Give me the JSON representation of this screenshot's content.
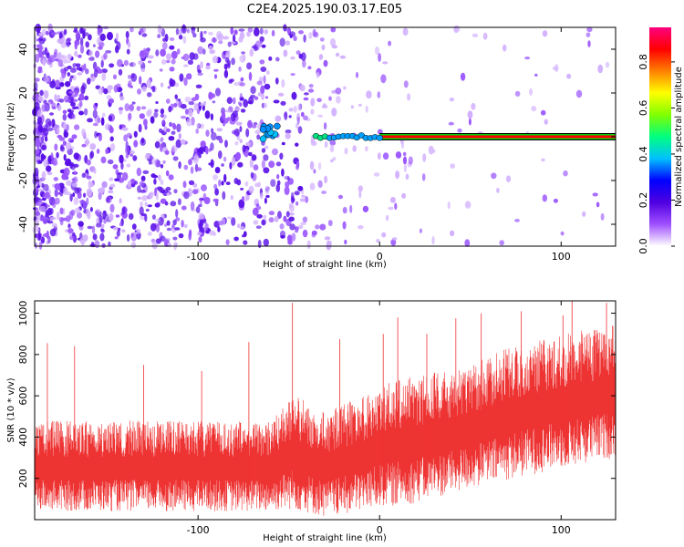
{
  "title": "C2E4.2025.190.03.17.E05",
  "chart_data": [
    {
      "type": "heatmap",
      "xlabel": "Height of straight line (km)",
      "ylabel": "Frequency (Hz)",
      "xlim": [
        -190,
        130
      ],
      "ylim": [
        -50,
        50
      ],
      "xticks": [
        -100,
        0,
        100
      ],
      "yticks": [
        -40,
        -20,
        0,
        20,
        40
      ],
      "grid": false,
      "colorbar": {
        "label": "Normalized spectral amplitude",
        "range": [
          0,
          0.95
        ],
        "ticks": [
          0.0,
          0.2,
          0.4,
          0.6,
          0.8
        ],
        "colors": [
          "#ffffff",
          "#a050ff",
          "#5000e0",
          "#0000ff",
          "#00c0ff",
          "#00ff80",
          "#80ff00",
          "#ffff00",
          "#ff8000",
          "#ff0000",
          "#ff0080"
        ]
      },
      "features": [
        {
          "name": "carrier",
          "x": [
            0,
            130
          ],
          "y": 0,
          "amplitude": 0.85
        },
        {
          "name": "carrier onset",
          "x": [
            -35,
            0
          ],
          "y": 0,
          "amplitude": 0.3
        },
        {
          "name": "blob",
          "x": -60,
          "y": 2,
          "amplitude": 0.3
        }
      ]
    },
    {
      "type": "line",
      "xlabel": "Height of straight line (km)",
      "ylabel": "SNR (10 * v/v)",
      "xlim": [
        -190,
        130
      ],
      "ylim": [
        0,
        1060
      ],
      "xticks": [
        -100,
        0,
        100
      ],
      "yticks": [
        200,
        400,
        600,
        800,
        1000
      ],
      "grid": false,
      "series": [
        {
          "color": "#ee3333",
          "x": [
            -190,
            -150,
            -100,
            -60,
            -48,
            -30,
            -20,
            0,
            20,
            50,
            75,
            100,
            130
          ],
          "low": [
            40,
            40,
            40,
            40,
            50,
            10,
            20,
            60,
            80,
            150,
            200,
            250,
            300
          ],
          "high": [
            480,
            480,
            480,
            480,
            620,
            520,
            560,
            650,
            700,
            750,
            850,
            900,
            950
          ],
          "peaks": [
            {
              "x": -183,
              "y": 855
            },
            {
              "x": -168,
              "y": 840
            },
            {
              "x": -130,
              "y": 750
            },
            {
              "x": -98,
              "y": 720
            },
            {
              "x": -72,
              "y": 860
            },
            {
              "x": -48,
              "y": 1050
            },
            {
              "x": -22,
              "y": 875
            },
            {
              "x": 2,
              "y": 900
            },
            {
              "x": 10,
              "y": 980
            },
            {
              "x": 26,
              "y": 900
            },
            {
              "x": 42,
              "y": 975
            },
            {
              "x": 56,
              "y": 1000
            },
            {
              "x": 78,
              "y": 1010
            },
            {
              "x": 101,
              "y": 990
            },
            {
              "x": 106,
              "y": 1065
            },
            {
              "x": 125,
              "y": 1050
            }
          ]
        }
      ]
    }
  ]
}
